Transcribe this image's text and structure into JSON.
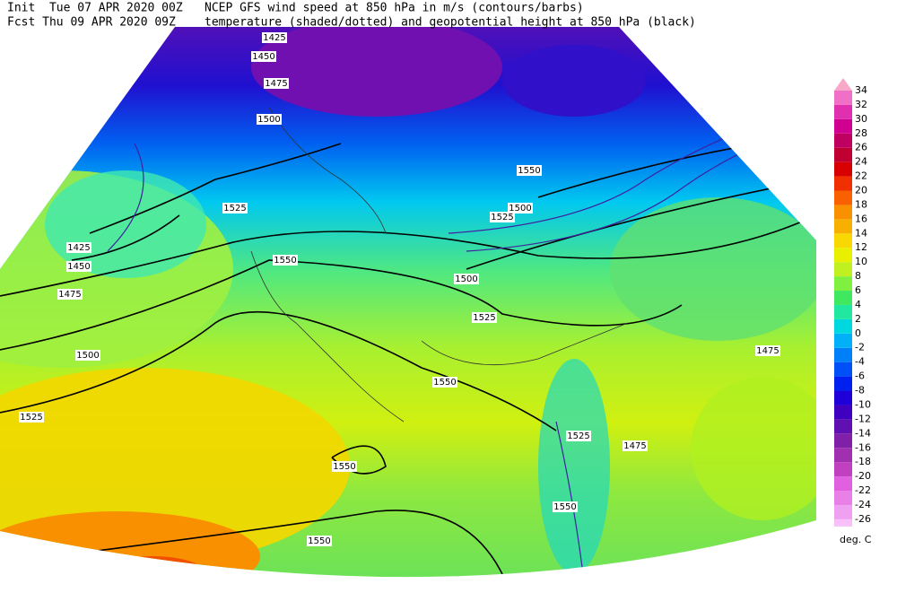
{
  "header": {
    "line1": {
      "left": "Init  Tue 07 APR 2020 00Z",
      "right": "NCEP GFS wind speed at 850 hPa in m/s (contours/barbs)"
    },
    "line2": {
      "left": "Fcst Thu 09 APR 2020 09Z",
      "right": "temperature (shaded/dotted) and geopotential height at 850 hPa (black)"
    }
  },
  "colorbar": {
    "labels": [
      34,
      32,
      30,
      28,
      26,
      24,
      22,
      20,
      18,
      16,
      14,
      12,
      10,
      8,
      6,
      4,
      2,
      0,
      -2,
      -4,
      -6,
      -8,
      -10,
      -12,
      -14,
      -16,
      -18,
      -20,
      -22,
      -24,
      -26
    ],
    "colors": [
      "#f8c0f8",
      "#f0a0f0",
      "#e880e8",
      "#e060e0",
      "#c040c0",
      "#a030b0",
      "#8020a8",
      "#6010b0",
      "#4000c0",
      "#2000d8",
      "#0020f0",
      "#0050f8",
      "#0080f8",
      "#00b0f8",
      "#00d8e0",
      "#20e8a0",
      "#40e860",
      "#80f040",
      "#c0f020",
      "#e8f000",
      "#f8d800",
      "#f8b000",
      "#f89000",
      "#f86000",
      "#f03000",
      "#d80000",
      "#c00030",
      "#c00060",
      "#d00090",
      "#e030b0",
      "#f070c8",
      "#f8a8c8"
    ],
    "unit": "deg. C"
  },
  "contour_labels": [
    "1425",
    "1450",
    "1475",
    "1500",
    "1525",
    "1450",
    "1425",
    "1475",
    "1500",
    "1525",
    "1550",
    "1525",
    "1550",
    "1550",
    "1550",
    "1525",
    "1550",
    "1475",
    "1500",
    "1500",
    "1525",
    "1550",
    "1475"
  ]
}
